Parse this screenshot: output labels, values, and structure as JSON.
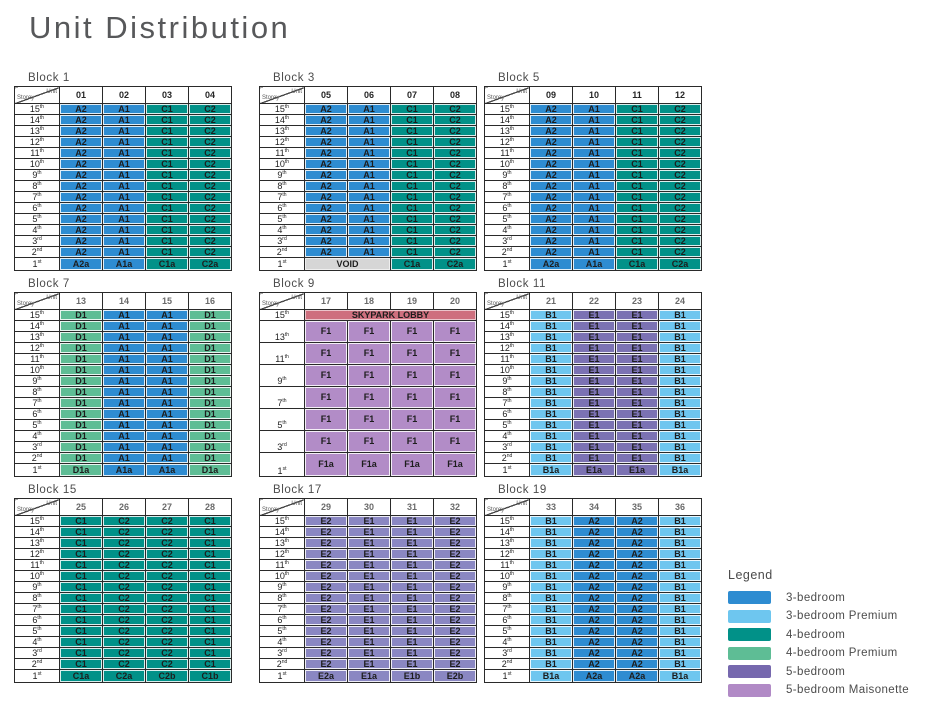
{
  "title": "Unit Distribution",
  "chart_data": {
    "type": "table",
    "title": "Unit Distribution",
    "corner_labels": {
      "top": "Unit",
      "bottom": "Storey"
    },
    "storeys": [
      "15th",
      "14th",
      "13th",
      "12th",
      "11th",
      "10th",
      "9th",
      "8th",
      "7th",
      "6th",
      "5th",
      "4th",
      "3rd",
      "2nd",
      "1st"
    ],
    "type_colors": {
      "A": "#2E8CD1",
      "B": "#6EC6EF",
      "C": "#019188",
      "D": "#5EBD95",
      "E": "#7B72B3",
      "E17": "#8A87C2",
      "F": "#B28CC7",
      "void": "#D6D6D6",
      "lobby": "#CE6F7E"
    },
    "blocks": [
      {
        "title": "Block 1",
        "units": [
          "01",
          "02",
          "03",
          "04"
        ],
        "column_color_keys": [
          "A",
          "A",
          "C",
          "C"
        ],
        "header_text_color": "#252525",
        "typical_units": [
          "A2",
          "A1",
          "C1",
          "C2"
        ],
        "first_storey_units": [
          "A2a",
          "A1a",
          "C1a",
          "C2a"
        ]
      },
      {
        "title": "Block 3",
        "units": [
          "05",
          "06",
          "07",
          "08"
        ],
        "column_color_keys": [
          "A",
          "A",
          "C",
          "C"
        ],
        "header_text_color": "#252525",
        "typical_units": [
          "A2",
          "A1",
          "C1",
          "C2"
        ],
        "first_storey_units": [
          {
            "label": "VOID",
            "span": 2,
            "color_key": "void"
          },
          "C1a",
          "C2a"
        ]
      },
      {
        "title": "Block 5",
        "units": [
          "09",
          "10",
          "11",
          "12"
        ],
        "column_color_keys": [
          "A",
          "A",
          "C",
          "C"
        ],
        "header_text_color": "#252525",
        "typical_units": [
          "A2",
          "A1",
          "C1",
          "C2"
        ],
        "first_storey_units": [
          "A2a",
          "A1a",
          "C1a",
          "C2a"
        ]
      },
      {
        "title": "Block 7",
        "units": [
          "13",
          "14",
          "15",
          "16"
        ],
        "column_color_keys": [
          "D",
          "A",
          "A",
          "D"
        ],
        "header_text_color": "#6a6a6a",
        "typical_units": [
          "D1",
          "A1",
          "A1",
          "D1"
        ],
        "first_storey_units": [
          "D1a",
          "A1a",
          "A1a",
          "D1a"
        ]
      },
      {
        "title": "Block 9",
        "layout": "maisonette",
        "units": [
          "17",
          "18",
          "19",
          "20"
        ],
        "column_color_keys": [
          "F",
          "F",
          "F",
          "F"
        ],
        "header_text_color": "#6a6a6a",
        "lobby_row": {
          "storey": "15th",
          "label": "SKYPARK LOBBY",
          "color_key": "lobby"
        },
        "maisonette_storeys": [
          "13th",
          "11th",
          "9th",
          "7th",
          "5th",
          "3rd"
        ],
        "typical_units": [
          "F1",
          "F1",
          "F1",
          "F1"
        ],
        "first_storey_label": "1st",
        "first_storey_units": [
          "F1a",
          "F1a",
          "F1a",
          "F1a"
        ]
      },
      {
        "title": "Block 11",
        "units": [
          "21",
          "22",
          "23",
          "24"
        ],
        "column_color_keys": [
          "B",
          "E",
          "E",
          "B"
        ],
        "header_text_color": "#6a6a6a",
        "typical_units": [
          "B1",
          "E1",
          "E1",
          "B1"
        ],
        "first_storey_units": [
          "B1a",
          "E1a",
          "E1a",
          "B1a"
        ]
      },
      {
        "title": "Block 15",
        "units": [
          "25",
          "26",
          "27",
          "28"
        ],
        "column_color_keys": [
          "C",
          "C",
          "C",
          "C"
        ],
        "header_text_color": "#6a6a6a",
        "typical_units": [
          "C1",
          "C2",
          "C2",
          "C1"
        ],
        "first_storey_units": [
          "C1a",
          "C2a",
          "C2b",
          "C1b"
        ]
      },
      {
        "title": "Block 17",
        "units": [
          "29",
          "30",
          "31",
          "32"
        ],
        "column_color_keys": [
          "E17",
          "E17",
          "E17",
          "E17"
        ],
        "header_text_color": "#6a6a6a",
        "typical_units": [
          "E2",
          "E1",
          "E1",
          "E2"
        ],
        "first_storey_units": [
          "E2a",
          "E1a",
          "E1b",
          "E2b"
        ]
      },
      {
        "title": "Block 19",
        "units": [
          "33",
          "34",
          "35",
          "36"
        ],
        "column_color_keys": [
          "B",
          "A",
          "A",
          "B"
        ],
        "header_text_color": "#6a6a6a",
        "typical_units": [
          "B1",
          "A2",
          "A2",
          "B1"
        ],
        "first_storey_units": [
          "B1a",
          "A2a",
          "A2a",
          "B1a"
        ]
      }
    ],
    "legend": {
      "title": "Legend",
      "items": [
        {
          "label": "3-bedroom",
          "color": "#2E8CD1"
        },
        {
          "label": "3-bedroom Premium",
          "color": "#6EC6EF"
        },
        {
          "label": "4-bedroom",
          "color": "#019188"
        },
        {
          "label": "4-bedroom Premium",
          "color": "#5EBD95"
        },
        {
          "label": "5-bedroom",
          "color": "#7668AE"
        },
        {
          "label": "5-bedroom Maisonette",
          "color": "#B18AC6"
        }
      ]
    }
  }
}
